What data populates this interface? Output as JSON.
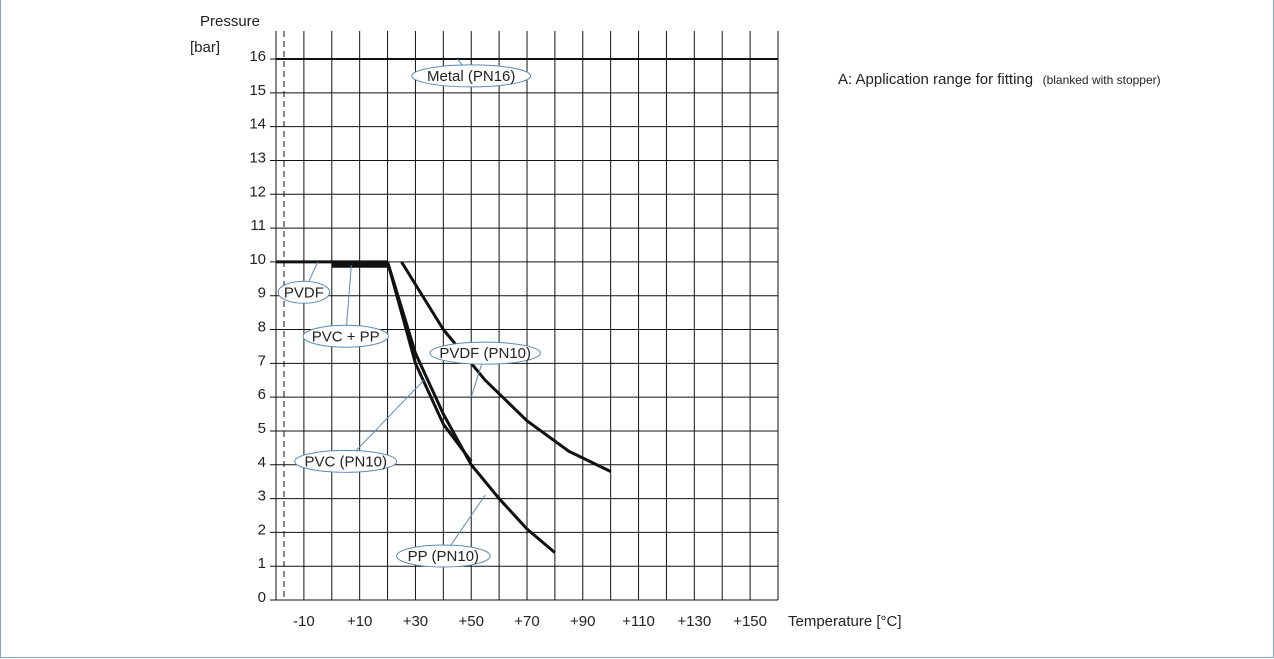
{
  "chart_data": {
    "type": "line",
    "ylabel_line1": "Pressure",
    "ylabel_line2": "[bar]",
    "xlabel": "Temperature [°C]",
    "xlim": [
      -20,
      160
    ],
    "ylim": [
      0,
      16
    ],
    "x_ticks": [
      -10,
      10,
      30,
      50,
      70,
      90,
      110,
      130,
      150
    ],
    "x_tick_labels": [
      "-10",
      "+10",
      "+30",
      "+50",
      "+70",
      "+90",
      "+110",
      "+130",
      "+150"
    ],
    "y_ticks": [
      0,
      1,
      2,
      3,
      4,
      5,
      6,
      7,
      8,
      9,
      10,
      11,
      12,
      13,
      14,
      15,
      16
    ],
    "grid": true,
    "reference_line_x": -20,
    "series": [
      {
        "name": "Metal (PN16)",
        "points": [
          [
            -20,
            16
          ],
          [
            160,
            16
          ]
        ],
        "stroke": 2
      },
      {
        "name": "PVDF",
        "points": [
          [
            -20,
            10
          ],
          [
            20,
            10
          ]
        ],
        "stroke": 3
      },
      {
        "name": "PVC + PP",
        "points": [
          [
            0,
            9.9
          ],
          [
            20,
            9.9
          ]
        ],
        "stroke": 5
      },
      {
        "name": "PVC (PN10)",
        "points": [
          [
            20,
            10
          ],
          [
            30,
            7
          ],
          [
            40,
            5.2
          ],
          [
            50,
            4.1
          ]
        ],
        "stroke": 3
      },
      {
        "name": "PP (PN10)",
        "points": [
          [
            20,
            10
          ],
          [
            30,
            7.3
          ],
          [
            40,
            5.5
          ],
          [
            50,
            4
          ],
          [
            60,
            3
          ],
          [
            70,
            2.1
          ],
          [
            80,
            1.4
          ]
        ],
        "stroke": 3
      },
      {
        "name": "PVDF (PN10)",
        "points": [
          [
            25,
            10
          ],
          [
            40,
            8
          ],
          [
            55,
            6.5
          ],
          [
            70,
            5.3
          ],
          [
            85,
            4.4
          ],
          [
            100,
            3.8
          ]
        ],
        "stroke": 3
      }
    ],
    "annotations": [
      {
        "text": "Metal (PN16)",
        "label_at": [
          50,
          15.5
        ],
        "leader_to": [
          45,
          16
        ]
      },
      {
        "text": "PVDF",
        "label_at": [
          -10,
          9.1
        ],
        "leader_to": [
          -5,
          10
        ]
      },
      {
        "text": "PVC + PP",
        "label_at": [
          5,
          7.8
        ],
        "leader_to": [
          7,
          9.9
        ]
      },
      {
        "text": "PVDF (PN10)",
        "label_at": [
          55,
          7.3
        ],
        "leader_to": [
          50,
          6
        ]
      },
      {
        "text": "PVC (PN10)",
        "label_at": [
          5,
          4.1
        ],
        "leader_to": [
          33,
          6.5
        ]
      },
      {
        "text": "PP (PN10)",
        "label_at": [
          40,
          1.3
        ],
        "leader_to": [
          55,
          3.1
        ]
      }
    ],
    "note": {
      "main": "A: Application range for fitting",
      "small": "(blanked with stopper)"
    }
  }
}
